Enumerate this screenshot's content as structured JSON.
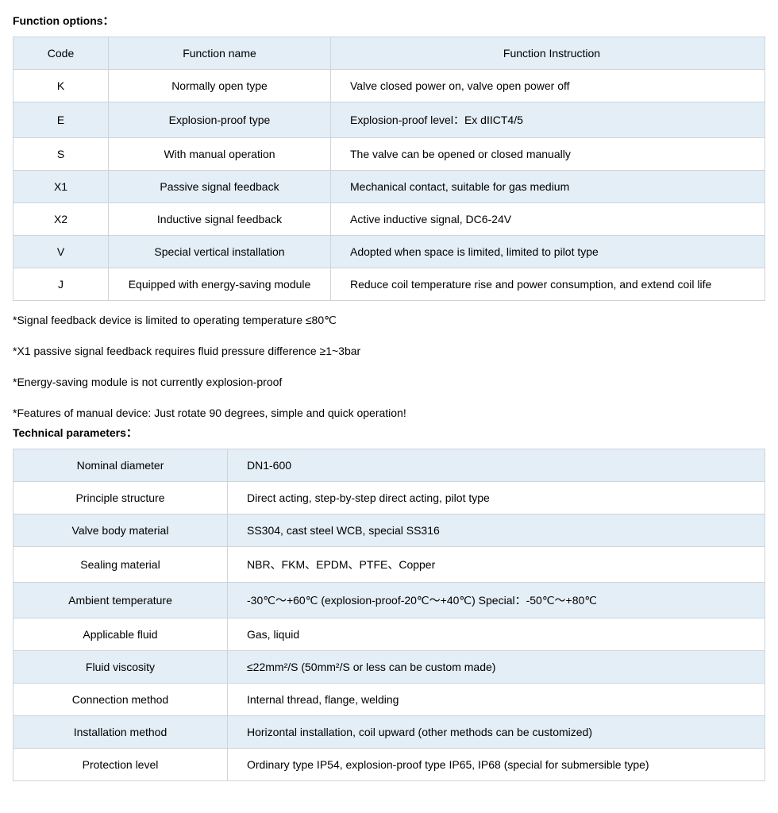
{
  "headings": {
    "function_options": "Function options：",
    "technical_parameters": "Technical parameters："
  },
  "functions_table": {
    "header_bg": "#e3eef6",
    "row_alt_bg": "#e3eef6",
    "row_base_bg": "#ffffff",
    "border_color": "#d0d4d9",
    "columns": [
      "Code",
      "Function name",
      "Function Instruction"
    ],
    "rows": [
      {
        "code": "K",
        "name": "Normally open type",
        "instruction": "Valve closed power on, valve open power   off"
      },
      {
        "code": "E",
        "name": "Explosion-proof type",
        "instruction": "Explosion-proof level：Ex dIICT4/5"
      },
      {
        "code": "S",
        "name": "With manual operation",
        "instruction": "The valve can be opened or closed manually"
      },
      {
        "code": "X1",
        "name": "Passive signal feedback",
        "instruction": "Mechanical contact, suitable for gas medium"
      },
      {
        "code": "X2",
        "name": "Inductive signal feedback",
        "instruction": "Active inductive signal, DC6-24V"
      },
      {
        "code": "V",
        "name": "Special vertical installation",
        "instruction": "Adopted when space is limited, limited to pilot type"
      },
      {
        "code": "J",
        "name": "Equipped with energy-saving module",
        "instruction": "Reduce coil temperature rise and power consumption, and extend coil life"
      }
    ]
  },
  "notes": [
    "*Signal feedback device is limited to operating temperature ≤80℃",
    "*X1 passive signal feedback requires fluid pressure difference ≥1~3bar",
    "*Energy-saving module is not currently explosion-proof",
    "*Features of manual device: Just rotate 90 degrees, simple and quick operation!"
  ],
  "params_table": {
    "row_alt_bg": "#e3eef6",
    "row_base_bg": "#ffffff",
    "border_color": "#d0d4d9",
    "rows": [
      {
        "param": "Nominal diameter",
        "value": "DN1-600"
      },
      {
        "param": "Principle structure",
        "value": "Direct acting, step-by-step direct acting, pilot type"
      },
      {
        "param": "Valve body material",
        "value": "SS304,  cast  steel  WCB,  special  SS316"
      },
      {
        "param": "Sealing material",
        "value": "NBR、FKM、EPDM、PTFE、Copper"
      },
      {
        "param": "Ambient temperature",
        "value": "-30℃～+60℃  (explosion-proof-20℃～+40℃)  Special：-50℃～+80℃"
      },
      {
        "param": "Applicable fluid",
        "value": "Gas, liquid"
      },
      {
        "param": "Fluid viscosity",
        "value": "≤22mm²/S  (50mm²/S or less can be custom made)"
      },
      {
        "param": "Connection method",
        "value": "Internal thread, flange, welding"
      },
      {
        "param": "Installation method",
        "value": "Horizontal installation, coil upward (other methods can be customized)"
      },
      {
        "param": "Protection level",
        "value": "Ordinary type IP54, explosion-proof type IP65, IP68 (special for submersible type)"
      }
    ]
  }
}
